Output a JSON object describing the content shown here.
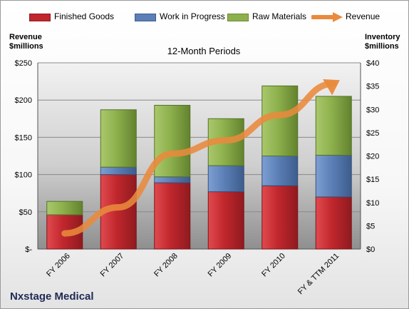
{
  "chart_data": {
    "type": "bar",
    "subtitle": "12-Month Periods",
    "company": "Nxstage Medical",
    "categories": [
      "FY 2006",
      "FY 2007",
      "FY 2008",
      "FY 2009",
      "FY 2010",
      "FY & TTM 2011"
    ],
    "left_axis": {
      "title_line1": "Revenue",
      "title_line2": "$millions",
      "range": [
        0,
        250
      ],
      "ticks": [
        0,
        50,
        100,
        150,
        200,
        250
      ],
      "tick_labels": [
        "$-",
        "$50",
        "$100",
        "$150",
        "$200",
        "$250"
      ]
    },
    "right_axis": {
      "title_line1": "Inventory",
      "title_line2": "$millions",
      "range": [
        0,
        40
      ],
      "ticks": [
        0,
        5,
        10,
        15,
        20,
        25,
        30,
        35,
        40
      ],
      "tick_labels": [
        "$0",
        "$5",
        "$10",
        "$15",
        "$20",
        "$25",
        "$30",
        "$35",
        "$40"
      ]
    },
    "stack_unit": "left_axis_scale",
    "series": [
      {
        "name": "Finished Goods",
        "type": "bar",
        "color": "#c0272d",
        "values": [
          46,
          100,
          89,
          77,
          85,
          70
        ]
      },
      {
        "name": "Work in Progress",
        "type": "bar",
        "color": "#5b7fb6",
        "values": [
          0,
          10,
          8,
          35,
          40,
          56
        ]
      },
      {
        "name": "Raw Materials",
        "type": "bar",
        "color": "#8db04c",
        "values": [
          18,
          77,
          96,
          63,
          94,
          79
        ]
      },
      {
        "name": "Revenue",
        "type": "line",
        "color": "#e98a3c",
        "values": [
          21,
          56,
          128,
          146,
          180,
          222
        ]
      }
    ],
    "grid": true
  }
}
